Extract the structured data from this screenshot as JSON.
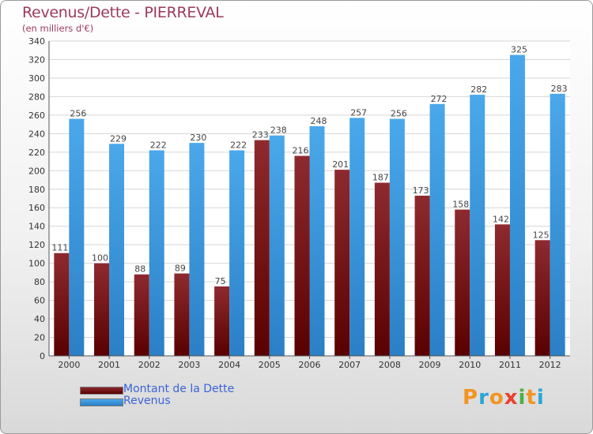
{
  "title": "Revenus/Dette - PIERREVAL",
  "subtitle": "(en milliers d'€)",
  "logo": {
    "letters": [
      "P",
      "r",
      "o",
      "x",
      "i",
      "t",
      "i"
    ],
    "colors": [
      "#f29422",
      "#2aa6d6",
      "#f29422",
      "#e8402c",
      "#4bb043",
      "#f29422",
      "#2aa6d6"
    ]
  },
  "chart_data": {
    "type": "bar",
    "categories": [
      "2000",
      "2001",
      "2002",
      "2003",
      "2004",
      "2005",
      "2006",
      "2007",
      "2008",
      "2009",
      "2010",
      "2011",
      "2012"
    ],
    "series": [
      {
        "name": "Montant de la Dette",
        "color": "#8b1a1a",
        "values": [
          111,
          100,
          88,
          89,
          75,
          233,
          216,
          201,
          187,
          173,
          158,
          142,
          125
        ]
      },
      {
        "name": "Revenus",
        "color": "#3b9ee3",
        "values": [
          256,
          229,
          222,
          230,
          222,
          238,
          248,
          257,
          256,
          272,
          282,
          325,
          283
        ]
      }
    ],
    "ylim": [
      0,
      340
    ],
    "yticks": [
      0,
      20,
      40,
      60,
      80,
      100,
      120,
      140,
      160,
      180,
      200,
      220,
      240,
      260,
      280,
      300,
      320,
      340
    ],
    "grid": true,
    "legend": "bottom-left"
  }
}
